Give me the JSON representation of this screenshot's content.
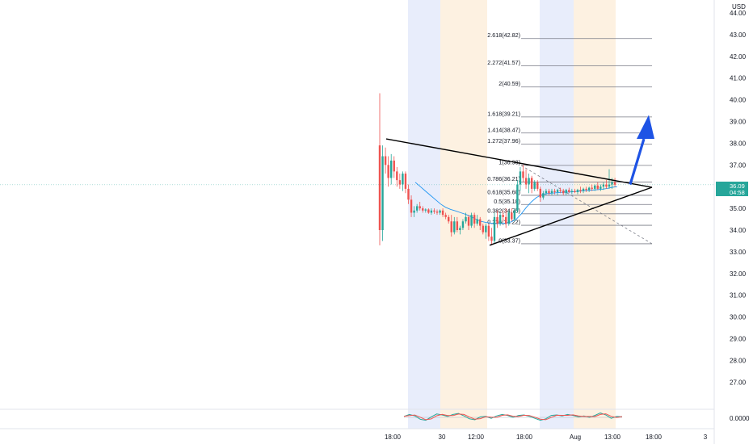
{
  "currency": "USD",
  "colors": {
    "up": "#26a69a",
    "down": "#ef5350",
    "session_blue": "#e8edfb",
    "session_orange": "#fdf1e1",
    "arrow": "#1e53e5",
    "triangle": "#000000",
    "fib_line": "#787b86",
    "ma": "#2196f3",
    "price_badge": "#26a69a",
    "osc_green": "#26a69a",
    "osc_red": "#ef5350"
  },
  "price_axis": {
    "ticks": [
      "44.00",
      "43.00",
      "42.00",
      "41.00",
      "40.00",
      "39.00",
      "38.00",
      "37.00",
      "36.00",
      "35.00",
      "34.00",
      "33.00",
      "32.00",
      "31.00",
      "30.00",
      "29.00",
      "28.00",
      "27.00"
    ],
    "current_price": "36.09",
    "countdown": "04:58"
  },
  "osc_axis": {
    "label": "0.0000"
  },
  "time_axis": {
    "ticks": [
      "18:00",
      "30",
      "12:00",
      "18:00",
      "Aug",
      "13:00",
      "18:00",
      "3"
    ]
  },
  "fib_levels": [
    {
      "label": "2.618(42.82)",
      "price": 42.82
    },
    {
      "label": "2.272(41.57)",
      "price": 41.57
    },
    {
      "label": "2(40.59)",
      "price": 40.59
    },
    {
      "label": "1.618(39.21)",
      "price": 39.21
    },
    {
      "label": "1.414(38.47)",
      "price": 38.47
    },
    {
      "label": "1.272(37.96)",
      "price": 37.96
    },
    {
      "label": "1(36.98)",
      "price": 36.98
    },
    {
      "label": "0.786(36.21)",
      "price": 36.21
    },
    {
      "label": "0.618(35.60)",
      "price": 35.6
    },
    {
      "label": "0.5(35.18)",
      "price": 35.18
    },
    {
      "label": "0.382(34.75)",
      "price": 34.75
    },
    {
      "label": "0.236(34.22)",
      "price": 34.22
    },
    {
      "label": "0(33.37)",
      "price": 33.37
    }
  ],
  "chart_data": {
    "type": "candlestick",
    "y_axis_range": [
      26.5,
      44.5
    ],
    "candles": [
      {
        "o": 37.9,
        "h": 40.3,
        "l": 33.3,
        "c": 34.0
      },
      {
        "o": 34.0,
        "h": 37.9,
        "l": 33.5,
        "c": 37.4
      },
      {
        "o": 37.4,
        "h": 37.8,
        "l": 36.6,
        "c": 37.0
      },
      {
        "o": 37.0,
        "h": 37.4,
        "l": 36.0,
        "c": 36.4
      },
      {
        "o": 36.4,
        "h": 37.5,
        "l": 36.1,
        "c": 37.2
      },
      {
        "o": 37.2,
        "h": 37.4,
        "l": 36.4,
        "c": 36.7
      },
      {
        "o": 36.7,
        "h": 36.9,
        "l": 36.0,
        "c": 36.3
      },
      {
        "o": 36.3,
        "h": 36.6,
        "l": 35.9,
        "c": 36.1
      },
      {
        "o": 36.1,
        "h": 36.7,
        "l": 35.8,
        "c": 36.6
      },
      {
        "o": 36.6,
        "h": 36.7,
        "l": 35.7,
        "c": 35.9
      },
      {
        "o": 35.9,
        "h": 36.1,
        "l": 35.2,
        "c": 35.4
      },
      {
        "o": 35.4,
        "h": 35.6,
        "l": 34.6,
        "c": 34.8
      },
      {
        "o": 34.8,
        "h": 35.1,
        "l": 34.6,
        "c": 34.9
      },
      {
        "o": 34.9,
        "h": 35.2,
        "l": 34.8,
        "c": 35.1
      },
      {
        "o": 35.1,
        "h": 35.3,
        "l": 34.9,
        "c": 35.0
      },
      {
        "o": 35.0,
        "h": 35.1,
        "l": 34.8,
        "c": 34.9
      },
      {
        "o": 34.9,
        "h": 35.0,
        "l": 34.8,
        "c": 34.95
      },
      {
        "o": 34.95,
        "h": 35.0,
        "l": 34.75,
        "c": 34.8
      },
      {
        "o": 34.8,
        "h": 35.0,
        "l": 34.7,
        "c": 34.9
      },
      {
        "o": 34.9,
        "h": 35.0,
        "l": 34.75,
        "c": 34.85
      },
      {
        "o": 34.85,
        "h": 34.95,
        "l": 34.7,
        "c": 34.8
      },
      {
        "o": 34.8,
        "h": 34.95,
        "l": 34.7,
        "c": 34.9
      },
      {
        "o": 34.9,
        "h": 35.0,
        "l": 34.6,
        "c": 34.7
      },
      {
        "o": 34.7,
        "h": 34.8,
        "l": 34.5,
        "c": 34.6
      },
      {
        "o": 34.6,
        "h": 34.7,
        "l": 34.3,
        "c": 34.4
      },
      {
        "o": 34.4,
        "h": 34.7,
        "l": 33.7,
        "c": 33.9
      },
      {
        "o": 33.9,
        "h": 34.6,
        "l": 33.8,
        "c": 34.4
      },
      {
        "o": 34.4,
        "h": 34.6,
        "l": 33.9,
        "c": 34.0
      },
      {
        "o": 34.0,
        "h": 34.2,
        "l": 33.8,
        "c": 34.1
      },
      {
        "o": 34.1,
        "h": 34.5,
        "l": 34.0,
        "c": 34.4
      },
      {
        "o": 34.4,
        "h": 34.8,
        "l": 34.3,
        "c": 34.6
      },
      {
        "o": 34.6,
        "h": 34.7,
        "l": 34.0,
        "c": 34.2
      },
      {
        "o": 34.2,
        "h": 34.8,
        "l": 34.1,
        "c": 34.7
      },
      {
        "o": 34.7,
        "h": 34.8,
        "l": 34.1,
        "c": 34.3
      },
      {
        "o": 34.3,
        "h": 34.7,
        "l": 34.2,
        "c": 34.5
      },
      {
        "o": 34.5,
        "h": 34.6,
        "l": 34.0,
        "c": 34.2
      },
      {
        "o": 34.2,
        "h": 34.3,
        "l": 33.8,
        "c": 33.9
      },
      {
        "o": 33.9,
        "h": 34.3,
        "l": 33.6,
        "c": 34.2
      },
      {
        "o": 34.2,
        "h": 34.3,
        "l": 33.5,
        "c": 33.7
      },
      {
        "o": 33.7,
        "h": 34.1,
        "l": 33.3,
        "c": 33.5
      },
      {
        "o": 33.5,
        "h": 34.8,
        "l": 33.4,
        "c": 34.6
      },
      {
        "o": 34.6,
        "h": 34.9,
        "l": 34.1,
        "c": 34.3
      },
      {
        "o": 34.3,
        "h": 34.8,
        "l": 34.2,
        "c": 34.7
      },
      {
        "o": 34.7,
        "h": 34.9,
        "l": 34.4,
        "c": 34.6
      },
      {
        "o": 34.6,
        "h": 35.0,
        "l": 34.1,
        "c": 34.3
      },
      {
        "o": 34.3,
        "h": 34.9,
        "l": 34.2,
        "c": 34.8
      },
      {
        "o": 34.8,
        "h": 35.0,
        "l": 34.4,
        "c": 34.5
      },
      {
        "o": 34.5,
        "h": 35.0,
        "l": 34.4,
        "c": 34.9
      },
      {
        "o": 34.9,
        "h": 36.3,
        "l": 34.8,
        "c": 36.1
      },
      {
        "o": 36.1,
        "h": 36.9,
        "l": 35.8,
        "c": 36.7
      },
      {
        "o": 36.7,
        "h": 37.0,
        "l": 36.2,
        "c": 36.4
      },
      {
        "o": 36.4,
        "h": 36.8,
        "l": 35.9,
        "c": 36.1
      },
      {
        "o": 36.1,
        "h": 36.6,
        "l": 35.7,
        "c": 36.4
      },
      {
        "o": 36.4,
        "h": 36.5,
        "l": 35.7,
        "c": 35.9
      },
      {
        "o": 35.9,
        "h": 36.3,
        "l": 35.8,
        "c": 36.2
      },
      {
        "o": 36.2,
        "h": 36.3,
        "l": 35.8,
        "c": 35.9
      },
      {
        "o": 35.9,
        "h": 36.0,
        "l": 35.3,
        "c": 35.5
      },
      {
        "o": 35.5,
        "h": 35.8,
        "l": 35.4,
        "c": 35.7
      },
      {
        "o": 35.7,
        "h": 35.9,
        "l": 35.6,
        "c": 35.8
      },
      {
        "o": 35.8,
        "h": 35.9,
        "l": 35.6,
        "c": 35.7
      },
      {
        "o": 35.7,
        "h": 35.9,
        "l": 35.6,
        "c": 35.8
      },
      {
        "o": 35.8,
        "h": 35.9,
        "l": 35.65,
        "c": 35.75
      },
      {
        "o": 35.75,
        "h": 35.9,
        "l": 35.6,
        "c": 35.85
      },
      {
        "o": 35.85,
        "h": 35.95,
        "l": 35.7,
        "c": 35.8
      },
      {
        "o": 35.8,
        "h": 35.9,
        "l": 35.6,
        "c": 35.7
      },
      {
        "o": 35.7,
        "h": 35.9,
        "l": 35.6,
        "c": 35.85
      },
      {
        "o": 35.85,
        "h": 35.95,
        "l": 35.7,
        "c": 35.75
      },
      {
        "o": 35.75,
        "h": 35.9,
        "l": 35.65,
        "c": 35.8
      },
      {
        "o": 35.8,
        "h": 35.9,
        "l": 35.7,
        "c": 35.75
      },
      {
        "o": 35.75,
        "h": 35.9,
        "l": 35.65,
        "c": 35.85
      },
      {
        "o": 35.85,
        "h": 36.0,
        "l": 35.7,
        "c": 35.8
      },
      {
        "o": 35.8,
        "h": 35.95,
        "l": 35.7,
        "c": 35.9
      },
      {
        "o": 35.9,
        "h": 36.0,
        "l": 35.75,
        "c": 35.85
      },
      {
        "o": 35.85,
        "h": 36.0,
        "l": 35.75,
        "c": 35.95
      },
      {
        "o": 35.95,
        "h": 36.1,
        "l": 35.8,
        "c": 35.9
      },
      {
        "o": 35.9,
        "h": 36.1,
        "l": 35.8,
        "c": 36.05
      },
      {
        "o": 36.05,
        "h": 36.2,
        "l": 35.85,
        "c": 35.9
      },
      {
        "o": 35.9,
        "h": 36.1,
        "l": 35.8,
        "c": 36.0
      },
      {
        "o": 36.0,
        "h": 36.2,
        "l": 35.85,
        "c": 36.1
      },
      {
        "o": 36.1,
        "h": 36.3,
        "l": 35.9,
        "c": 36.0
      },
      {
        "o": 36.0,
        "h": 36.8,
        "l": 35.9,
        "c": 36.1
      },
      {
        "o": 36.1,
        "h": 36.4,
        "l": 35.9,
        "c": 36.2
      },
      {
        "o": 36.2,
        "h": 36.4,
        "l": 36.0,
        "c": 36.09
      }
    ],
    "moving_average": [
      36.2,
      36.0,
      35.8,
      35.6,
      35.4,
      35.2,
      35.05,
      34.95,
      34.88,
      34.8,
      34.72,
      34.62,
      34.5,
      34.4,
      34.35,
      34.32,
      34.3,
      34.3,
      34.32,
      34.38,
      34.5,
      34.75,
      35.05,
      35.3,
      35.5,
      35.62,
      35.68,
      35.7,
      35.72,
      35.74,
      35.75,
      35.76,
      35.78,
      35.8,
      35.82,
      35.84,
      35.86,
      35.88,
      35.92,
      35.97,
      36.0
    ],
    "oscillator": [
      0.2,
      0.6,
      0.3,
      -0.4,
      -0.6,
      0.1,
      0.7,
      0.5,
      0.2,
      0.6,
      0.8,
      0.3,
      -0.3,
      -0.5,
      0.1,
      0.2,
      -0.2,
      0.3,
      0.6,
      0.4,
      0.0,
      0.4,
      0.5,
      0.2,
      -0.2,
      -0.6,
      -0.3,
      0.4,
      0.5,
      0.3,
      0.6,
      0.4,
      0.1,
      0.3,
      0.0,
      0.4,
      0.9,
      0.5,
      -0.2,
      0.2,
      0.1
    ],
    "annotations": {
      "triangle": {
        "upper": [
          [
            0,
            38.2
          ],
          [
            83,
            35.97
          ]
        ],
        "lower": [
          [
            39,
            33.3
          ],
          [
            83,
            35.97
          ]
        ]
      },
      "arrow": {
        "from": [
          77,
          36.1
        ],
        "to": [
          80,
          39.3
        ]
      }
    }
  }
}
